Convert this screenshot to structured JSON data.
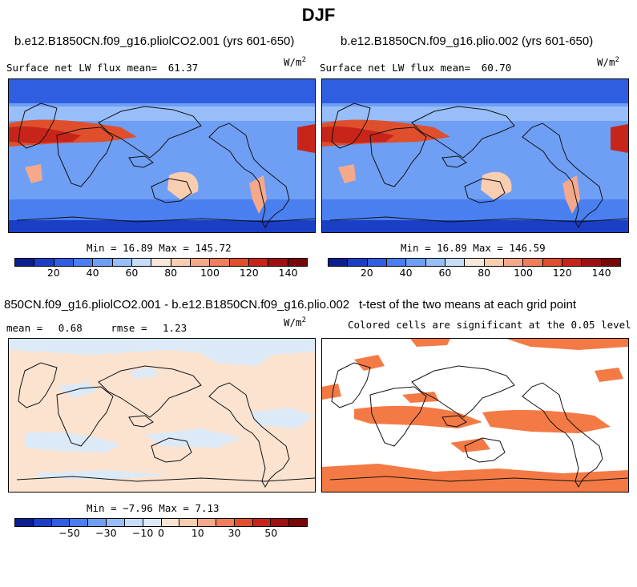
{
  "title": "DJF",
  "palette_main": [
    "#0b1f8f",
    "#1a3fc4",
    "#2f5fe0",
    "#4a7ff0",
    "#6e9ff5",
    "#97bef8",
    "#c6dcf7",
    "#f6e7da",
    "#f9cdb0",
    "#f4a98a",
    "#ee7f5a",
    "#e04f2c",
    "#c8251a",
    "#9e1011",
    "#780707"
  ],
  "palette_diff": [
    "#0b1f8f",
    "#1a3fc4",
    "#2f5fe0",
    "#4a7ff0",
    "#6e9ff5",
    "#97bef8",
    "#c6dcf7",
    "#dceaf7",
    "#fbe3d0",
    "#f9cdb0",
    "#f4a98a",
    "#ee7f5a",
    "#e04f2c",
    "#c8251a",
    "#9e1011",
    "#780707"
  ],
  "significant_color": "#f47a45",
  "panels": {
    "a": {
      "title": "b.e12.B1850CN.f09_g16.pliolCO2.001 (yrs 601-650)",
      "stat_label": "Surface net LW flux mean=",
      "stat_value": "61.37",
      "units_base": "W/m",
      "units_exp": "2",
      "minmax": "Min =  16.89 Max = 145.72",
      "ticks": [
        "20",
        "40",
        "60",
        "80",
        "100",
        "120",
        "140"
      ]
    },
    "b": {
      "title": "b.e12.B1850CN.f09_g16.plio.002 (yrs 601-650)",
      "stat_label": "Surface net LW flux mean=",
      "stat_value": "60.70",
      "units_base": "W/m",
      "units_exp": "2",
      "minmax": "Min =  16.89 Max = 146.59",
      "ticks": [
        "20",
        "40",
        "60",
        "80",
        "100",
        "120",
        "140"
      ]
    },
    "c": {
      "title": "850CN.f09_g16.pliolCO2.001 - b.e12.B1850CN.f09_g16.plio.002",
      "mean_label": "mean =",
      "mean_value": "0.68",
      "rmse_label": "rmse =",
      "rmse_value": "1.23",
      "units_base": "W/m",
      "units_exp": "2",
      "minmax": "Min = −7.96 Max =  7.13",
      "ticks": [
        "−50",
        "−30",
        "−10",
        "0",
        "10",
        "30",
        "50"
      ]
    },
    "d": {
      "title": "t-test of the two means at each grid point",
      "subtitle": "Colored cells are significant at the 0.05 level"
    }
  }
}
